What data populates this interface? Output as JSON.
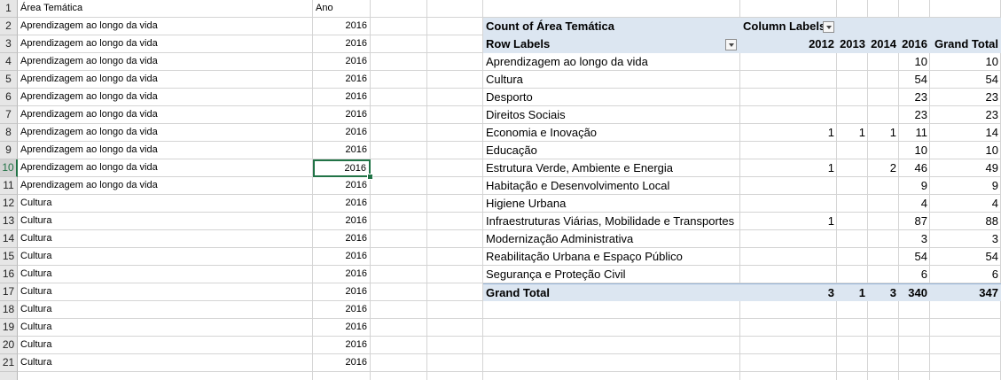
{
  "sheet": {
    "header_row": {
      "row": "1",
      "col_a": "Área Temática",
      "col_b": "Ano"
    },
    "rows": [
      {
        "row": "2",
        "a": "Aprendizagem ao longo da vida",
        "b": "2016"
      },
      {
        "row": "3",
        "a": "Aprendizagem ao longo da vida",
        "b": "2016"
      },
      {
        "row": "4",
        "a": "Aprendizagem ao longo da vida",
        "b": "2016"
      },
      {
        "row": "5",
        "a": "Aprendizagem ao longo da vida",
        "b": "2016"
      },
      {
        "row": "6",
        "a": "Aprendizagem ao longo da vida",
        "b": "2016"
      },
      {
        "row": "7",
        "a": "Aprendizagem ao longo da vida",
        "b": "2016"
      },
      {
        "row": "8",
        "a": "Aprendizagem ao longo da vida",
        "b": "2016"
      },
      {
        "row": "9",
        "a": "Aprendizagem ao longo da vida",
        "b": "2016"
      },
      {
        "row": "10",
        "a": "Aprendizagem ao longo da vida",
        "b": "2016"
      },
      {
        "row": "11",
        "a": "Aprendizagem ao longo da vida",
        "b": "2016"
      },
      {
        "row": "12",
        "a": "Cultura",
        "b": "2016"
      },
      {
        "row": "13",
        "a": "Cultura",
        "b": "2016"
      },
      {
        "row": "14",
        "a": "Cultura",
        "b": "2016"
      },
      {
        "row": "15",
        "a": "Cultura",
        "b": "2016"
      },
      {
        "row": "16",
        "a": "Cultura",
        "b": "2016"
      },
      {
        "row": "17",
        "a": "Cultura",
        "b": "2016"
      },
      {
        "row": "18",
        "a": "Cultura",
        "b": "2016"
      },
      {
        "row": "19",
        "a": "Cultura",
        "b": "2016"
      },
      {
        "row": "20",
        "a": "Cultura",
        "b": "2016"
      },
      {
        "row": "21",
        "a": "Cultura",
        "b": "2016"
      }
    ],
    "selected_row": "10"
  },
  "pivot": {
    "title": "Count of Área Temática",
    "column_labels": "Column Labels",
    "row_labels": "Row Labels",
    "years": [
      "2012",
      "2013",
      "2014",
      "2016"
    ],
    "grand_total_label": "Grand Total",
    "rows": [
      {
        "label": "Aprendizagem ao longo da vida",
        "v": [
          "",
          "",
          "",
          "10"
        ],
        "total": "10"
      },
      {
        "label": "Cultura",
        "v": [
          "",
          "",
          "",
          "54"
        ],
        "total": "54"
      },
      {
        "label": "Desporto",
        "v": [
          "",
          "",
          "",
          "23"
        ],
        "total": "23"
      },
      {
        "label": "Direitos Sociais",
        "v": [
          "",
          "",
          "",
          "23"
        ],
        "total": "23"
      },
      {
        "label": "Economia e Inovação",
        "v": [
          "1",
          "1",
          "1",
          "11"
        ],
        "total": "14"
      },
      {
        "label": "Educação",
        "v": [
          "",
          "",
          "",
          "10"
        ],
        "total": "10"
      },
      {
        "label": "Estrutura Verde, Ambiente e Energia",
        "v": [
          "1",
          "",
          "2",
          "46"
        ],
        "total": "49"
      },
      {
        "label": "Habitação e Desenvolvimento Local",
        "v": [
          "",
          "",
          "",
          "9"
        ],
        "total": "9"
      },
      {
        "label": "Higiene Urbana",
        "v": [
          "",
          "",
          "",
          "4"
        ],
        "total": "4"
      },
      {
        "label": "Infraestruturas Viárias, Mobilidade e Transportes",
        "v": [
          "1",
          "",
          "",
          "87"
        ],
        "total": "88"
      },
      {
        "label": "Modernização Administrativa",
        "v": [
          "",
          "",
          "",
          "3"
        ],
        "total": "3"
      },
      {
        "label": "Reabilitação Urbana e Espaço Público",
        "v": [
          "",
          "",
          "",
          "54"
        ],
        "total": "54"
      },
      {
        "label": "Segurança e Proteção Civil",
        "v": [
          "",
          "",
          "",
          "6"
        ],
        "total": "6"
      }
    ],
    "grand_total": {
      "label": "Grand Total",
      "v": [
        "3",
        "1",
        "3",
        "340"
      ],
      "total": "347"
    }
  }
}
